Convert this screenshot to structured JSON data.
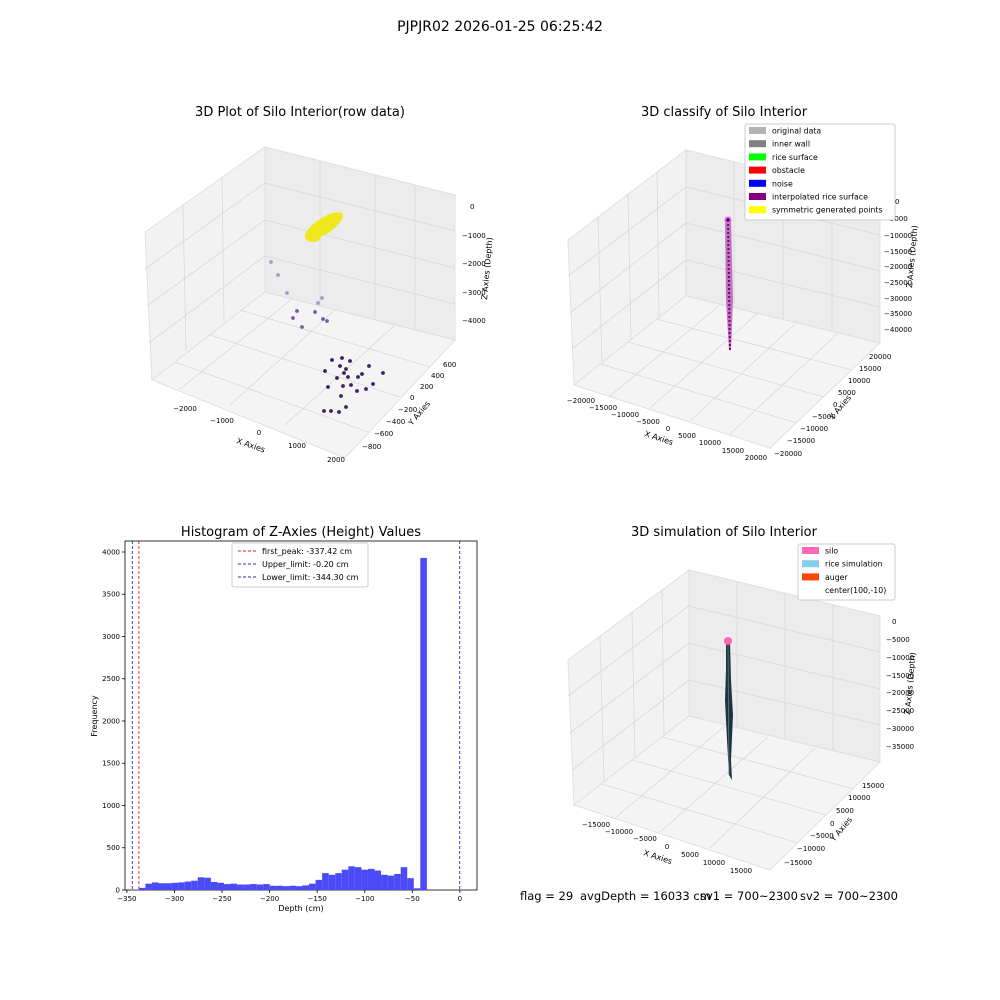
{
  "suptitle": "PJPJR02 2026-01-25 06:25:42",
  "colors": {
    "pane": "#f2f2f2",
    "grid": "#d9d9d9",
    "edge": "#bfbfbf",
    "raw_points": "#f0e81e",
    "raw_dark": "#3b1f63",
    "raw_mid": "#7a5aa0",
    "raw_light": "#a99abf",
    "hist_bar": "#4a4af6",
    "first_peak_line": "#e41a1c",
    "limit_line": "#2c2ca8",
    "interp": "#8b1a8b",
    "silo": "#ff66b3",
    "rice_sim": "#87ceeb",
    "auger": "#ff4500",
    "surface": "#1c3440"
  },
  "panels": {
    "raw": {
      "title": "3D Plot of Silo Interior(row data)",
      "xlabel": "X Axies",
      "ylabel": "Y Axies",
      "zlabel": "Z Axies (Depth)",
      "xticks": [
        "−2000",
        "−1000",
        "0",
        "1000",
        "2000"
      ],
      "yticks": [
        "600",
        "400",
        "200",
        "0",
        "−200",
        "−400",
        "−600",
        "−800"
      ],
      "zticks": [
        "0",
        "−1000",
        "−2000",
        "−3000",
        "−4000"
      ]
    },
    "classify": {
      "title": "3D classify of Silo Interior",
      "xlabel": "X Axies",
      "ylabel": "Y Axies",
      "zlabel": "Z Axies (Depth)",
      "xticks": [
        "−20000",
        "−15000",
        "−10000",
        "−5000",
        "0",
        "5000",
        "10000",
        "15000",
        "20000"
      ],
      "yticks": [
        "20000",
        "15000",
        "10000",
        "5000",
        "0",
        "−5000",
        "−10000",
        "−15000",
        "−20000"
      ],
      "zticks": [
        "0",
        "−5000",
        "−10000",
        "−15000",
        "−20000",
        "−25000",
        "−30000",
        "−35000",
        "−40000"
      ],
      "legend": [
        {
          "label": "original data",
          "color": "#b3b3b3"
        },
        {
          "label": "inner wall",
          "color": "#808080"
        },
        {
          "label": "rice surface",
          "color": "#00ff00"
        },
        {
          "label": "obstacle",
          "color": "#ff0000"
        },
        {
          "label": "noise",
          "color": "#0000ff"
        },
        {
          "label": "interpolated rice surface",
          "color": "#800080"
        },
        {
          "label": "symmetric generated points",
          "color": "#ffff00"
        }
      ]
    },
    "simulation": {
      "title": "3D simulation of Silo Interior",
      "xlabel": "X Axies",
      "ylabel": "Y Axies",
      "zlabel": "Z Axies (Depth)",
      "xticks": [
        "−15000",
        "−10000",
        "−5000",
        "0",
        "5000",
        "10000",
        "15000"
      ],
      "yticks": [
        "15000",
        "10000",
        "5000",
        "0",
        "−5000",
        "−10000",
        "−15000"
      ],
      "zticks": [
        "0",
        "−5000",
        "−10000",
        "−15000",
        "−20000",
        "−25000",
        "−30000",
        "−35000"
      ],
      "legend": [
        {
          "label": "silo",
          "color": "#ff66b3"
        },
        {
          "label": "rice simulation",
          "color": "#87ceeb"
        },
        {
          "label": "auger",
          "color": "#ff4500"
        },
        {
          "label": "center(100,-10)",
          "color": ""
        }
      ]
    }
  },
  "footer": {
    "flag": "flag = 29",
    "avg_depth": "avgDepth = 16033 cm",
    "sv1": "sv1 = 700~2300",
    "sv2": "sv2 = 700~2300"
  },
  "chart_data": {
    "type": "bar",
    "title": "Histogram of Z-Axies (Height) Values",
    "xlabel": "Depth (cm)",
    "ylabel": "Frequency",
    "xlim": [
      -352,
      18
    ],
    "ylim": [
      0,
      4130
    ],
    "xticks": [
      -350,
      -300,
      -250,
      -200,
      -150,
      -100,
      -50,
      0
    ],
    "yticks": [
      0,
      500,
      1000,
      1500,
      2000,
      2500,
      3000,
      3500,
      4000
    ],
    "bin_start": -344.3,
    "bin_width": 6.88,
    "values": [
      5,
      25,
      75,
      90,
      80,
      80,
      85,
      90,
      100,
      110,
      150,
      145,
      95,
      85,
      70,
      75,
      65,
      65,
      70,
      65,
      70,
      50,
      50,
      45,
      50,
      45,
      55,
      75,
      120,
      200,
      180,
      200,
      240,
      280,
      270,
      240,
      250,
      230,
      180,
      170,
      190,
      270,
      140,
      20,
      3930
    ],
    "legend": [
      {
        "label": "first_peak: -337.42 cm",
        "value": -337.42,
        "style": "red-dashed"
      },
      {
        "label": "Upper_limit: -0.20 cm",
        "value": -0.2,
        "style": "blue-dashed"
      },
      {
        "label": "Lower_limit: -344.30 cm",
        "value": -344.3,
        "style": "blue-dashed"
      }
    ],
    "legend_position": "upper-center",
    "grid": false
  }
}
